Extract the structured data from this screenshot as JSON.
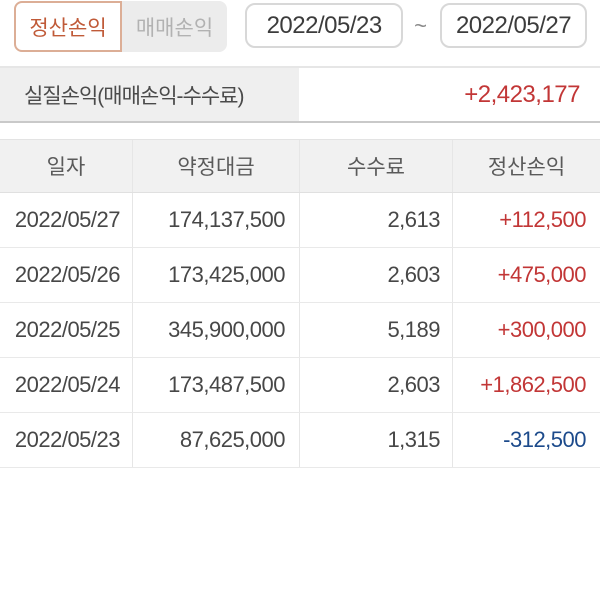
{
  "colors": {
    "positive": "#c23636",
    "negative": "#1c4a8b",
    "accent": "#c05a38",
    "accent-border": "#dcae96"
  },
  "tabs": {
    "settlement_label": "정산손익",
    "trading_label": "매매손익",
    "active": "정산손익"
  },
  "date_range": {
    "start": "2022/05/23",
    "separator": "~",
    "end": "2022/05/27"
  },
  "summary": {
    "label": "실질손익(매매손익-수수료)",
    "value": "+2,423,177"
  },
  "table": {
    "columns": {
      "date": "일자",
      "amount": "약정대금",
      "fee": "수수료",
      "pnl": "정산손익"
    },
    "rows": [
      {
        "date": "2022/05/27",
        "amount": "174,137,500",
        "fee": "2,613",
        "pnl": "+112,500"
      },
      {
        "date": "2022/05/26",
        "amount": "173,425,000",
        "fee": "2,603",
        "pnl": "+475,000"
      },
      {
        "date": "2022/05/25",
        "amount": "345,900,000",
        "fee": "5,189",
        "pnl": "+300,000"
      },
      {
        "date": "2022/05/24",
        "amount": "173,487,500",
        "fee": "2,603",
        "pnl": "+1,862,500"
      },
      {
        "date": "2022/05/23",
        "amount": "87,625,000",
        "fee": "1,315",
        "pnl": "-312,500"
      }
    ]
  }
}
